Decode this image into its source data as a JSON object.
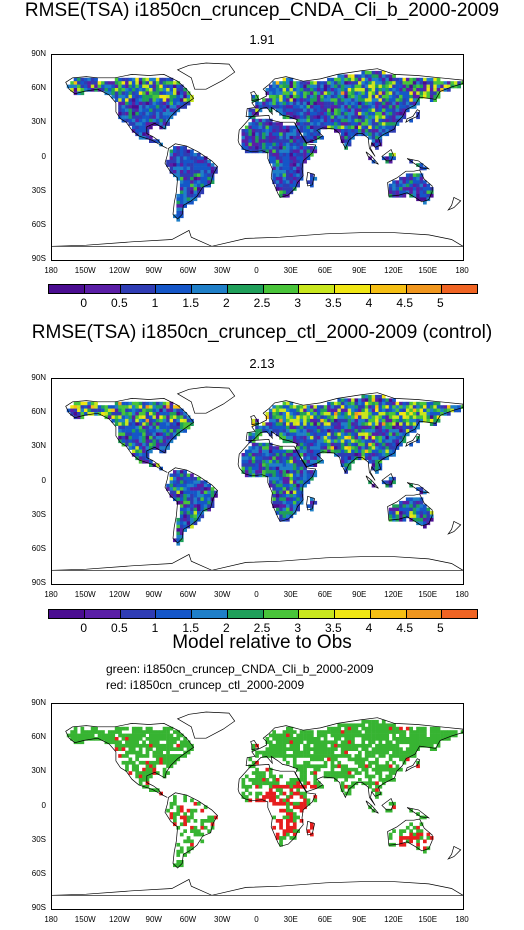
{
  "panel1": {
    "title": "RMSE(TSA) i1850cn_cruncep_CNDA_Cli_b_2000-2009",
    "value": "1.91"
  },
  "panel2": {
    "title": "RMSE(TSA) i1850cn_cruncep_ctl_2000-2009 (control)",
    "value": "2.13"
  },
  "panel3": {
    "title": "Model relative to Obs",
    "legend_green": "green: i1850cn_cruncep_CNDA_Cli_b_2000-2009",
    "legend_red": "red: i1850cn_cruncep_ctl_2000-2009"
  },
  "lat_labels": [
    "90N",
    "60N",
    "30N",
    "0",
    "30S",
    "60S",
    "90S"
  ],
  "lon_labels": [
    "180",
    "150W",
    "120W",
    "90W",
    "60W",
    "30W",
    "0",
    "30E",
    "60E",
    "90E",
    "120E",
    "150E",
    "180"
  ],
  "colorbar": {
    "labels": [
      "0",
      "0.5",
      "1",
      "1.5",
      "2",
      "2.5",
      "3",
      "3.5",
      "4",
      "4.5",
      "5"
    ],
    "colors": [
      "#4b0d91",
      "#5a1ea6",
      "#2f3cb4",
      "#1556c8",
      "#1f7fc8",
      "#1f9f5a",
      "#49c43a",
      "#c8e61e",
      "#f0e614",
      "#f5bf14",
      "#f0961e",
      "#f06423"
    ]
  },
  "highlight_colors": {
    "green": "#37b432",
    "red": "#e61e1e"
  }
}
